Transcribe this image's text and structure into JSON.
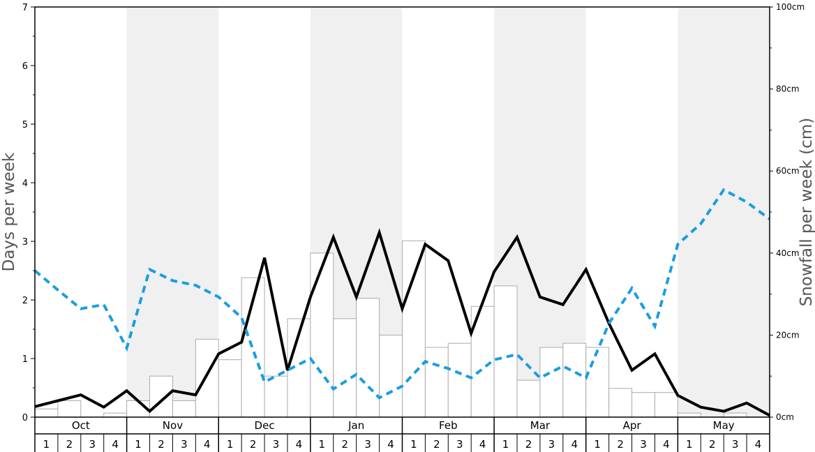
{
  "chart_data": {
    "type": "bar",
    "left_axis": {
      "label": "Days per week",
      "range": [
        0,
        7
      ],
      "ticks": [
        "0",
        "1",
        "2",
        "3",
        "4",
        "5",
        "6",
        "7"
      ]
    },
    "right_axis": {
      "label": "Snowfall per week (cm)",
      "range": [
        0,
        100
      ],
      "ticks": [
        "0cm",
        "20cm",
        "40cm",
        "60cm",
        "80cm",
        "100cm"
      ]
    },
    "months": [
      "Oct",
      "Nov",
      "Dec",
      "Jan",
      "Feb",
      "Mar",
      "Apr",
      "May"
    ],
    "weeks": [
      "1",
      "2",
      "3",
      "4"
    ],
    "shaded_months": [
      "Nov",
      "Jan",
      "Mar",
      "May"
    ],
    "colors": {
      "bar_fill": "#ffffff",
      "bar_stroke": "#aaaaaa",
      "snow_days_line": "#000000",
      "second_line": "#1a9de0",
      "shade": "#f0f0f0"
    },
    "series": [
      {
        "kind": "bars",
        "axis": "right",
        "values": [
          2,
          4,
          0,
          1,
          4,
          10,
          4,
          19,
          14,
          34,
          10,
          24,
          40,
          24,
          29,
          20,
          43,
          17,
          18,
          27,
          32,
          9,
          17,
          18,
          17,
          7,
          6,
          6,
          1,
          0,
          1,
          0
        ]
      },
      {
        "kind": "line",
        "style": "solid",
        "axis": "left",
        "values": [
          0.18,
          0.28,
          0.38,
          0.17,
          0.45,
          0.1,
          0.45,
          0.38,
          1.08,
          1.28,
          2.72,
          0.8,
          2.05,
          3.07,
          2.05,
          3.15,
          1.85,
          2.95,
          2.67,
          1.43,
          2.48,
          3.07,
          2.05,
          1.92,
          2.52,
          1.6,
          0.8,
          1.08,
          0.37,
          0.17,
          0.1,
          0.24,
          0.03
        ]
      },
      {
        "kind": "line",
        "style": "dashed",
        "axis": "left",
        "values": [
          2.5,
          2.17,
          1.85,
          1.92,
          1.18,
          2.52,
          2.33,
          2.25,
          2.05,
          1.7,
          0.6,
          0.8,
          1.0,
          0.48,
          0.73,
          0.33,
          0.53,
          0.95,
          0.83,
          0.67,
          0.98,
          1.07,
          0.67,
          0.87,
          0.67,
          1.6,
          2.2,
          1.55,
          2.95,
          3.3,
          3.88,
          3.67,
          3.38
        ]
      }
    ]
  }
}
